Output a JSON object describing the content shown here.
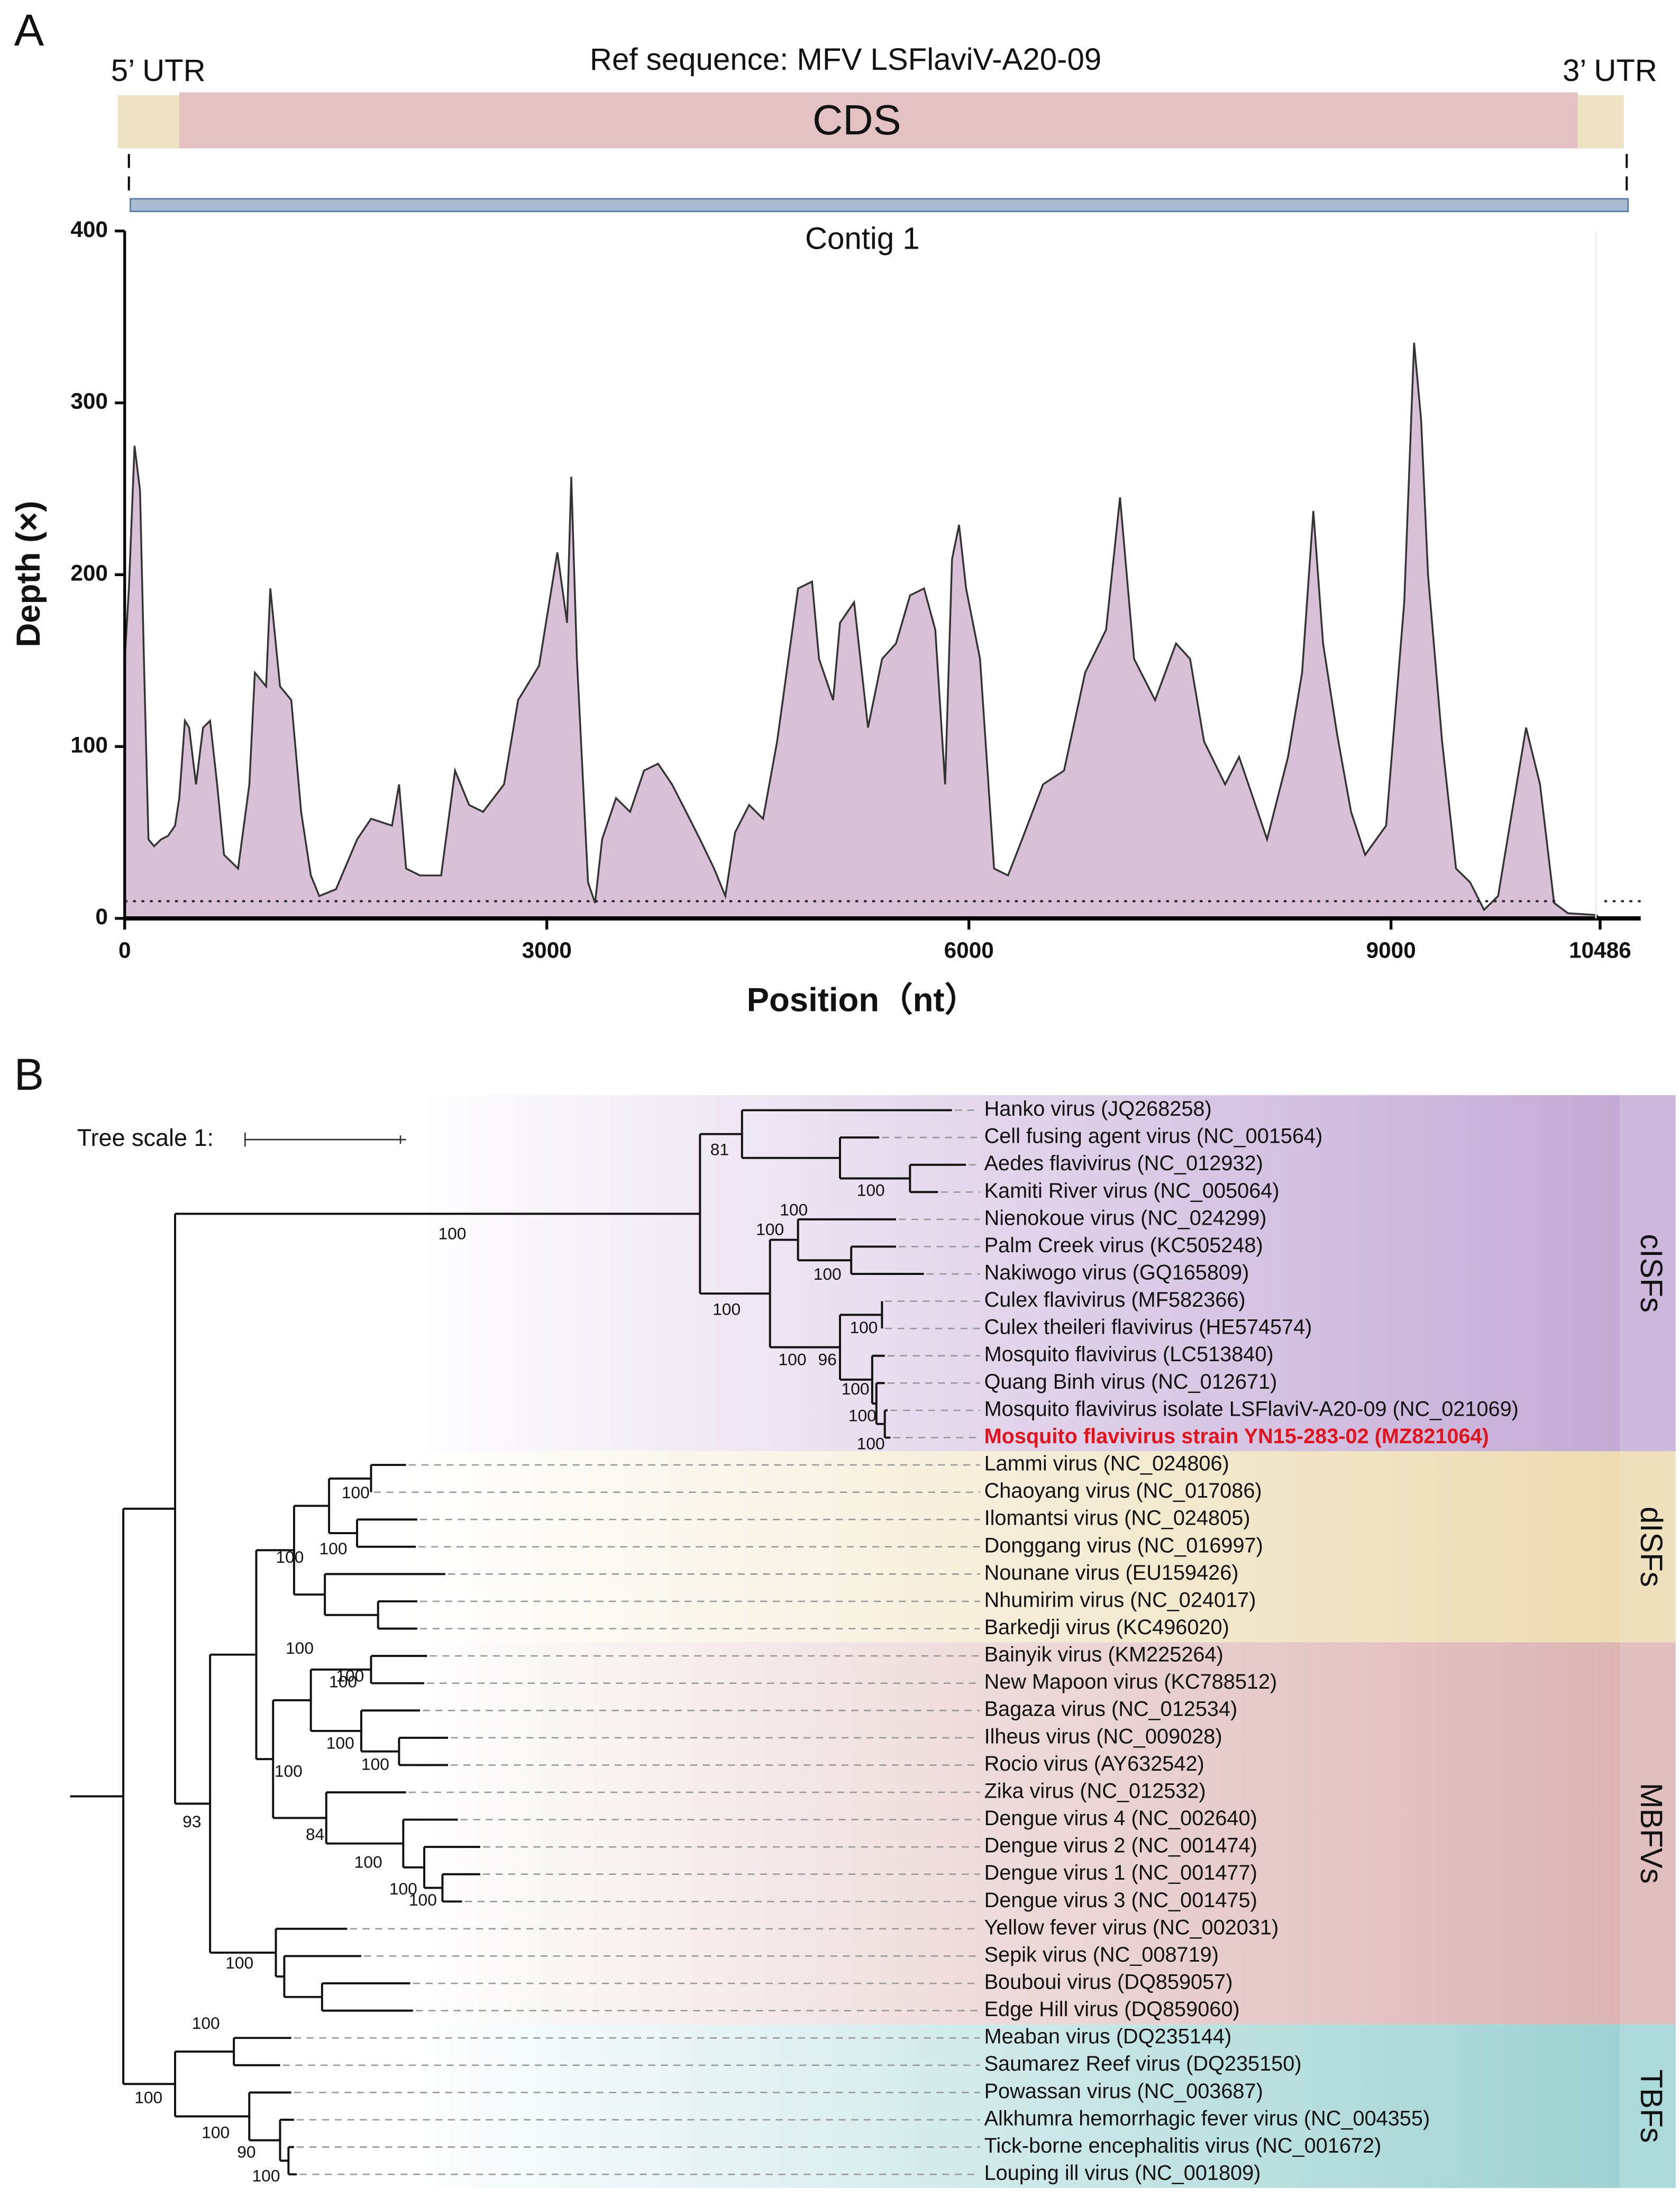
{
  "panel_a": {
    "label": "A",
    "genome_map": {
      "title": "Ref sequence: MFV LSFlaviV-A20-09",
      "left_label": "5’ UTR",
      "right_label": "3’ UTR",
      "cds_label": "CDS"
    }
  },
  "chart_data": {
    "type": "area",
    "title": "Contig 1",
    "x_label": "Position（nt）",
    "y_label": "Depth (×)",
    "x": [
      0,
      30,
      70,
      109,
      139,
      169,
      209,
      259,
      308,
      358,
      388,
      428,
      458,
      507,
      557,
      607,
      657,
      706,
      806,
      886,
      925,
      1005,
      1035,
      1104,
      1184,
      1254,
      1323,
      1383,
      1502,
      1652,
      1751,
      1900,
      1950,
      2000,
      2099,
      2249,
      2348,
      2448,
      2547,
      2696,
      2796,
      2945,
      3075,
      3144,
      3174,
      3214,
      3293,
      3343,
      3393,
      3492,
      3592,
      3691,
      3791,
      3890,
      3990,
      4089,
      4189,
      4269,
      4338,
      4438,
      4537,
      4637,
      4786,
      4885,
      4935,
      5035,
      5084,
      5184,
      5283,
      5383,
      5482,
      5582,
      5681,
      5761,
      5831,
      5880,
      5930,
      5980,
      6079,
      6179,
      6278,
      6378,
      6527,
      6676,
      6826,
      6975,
      7074,
      7174,
      7323,
      7472,
      7572,
      7671,
      7821,
      7920,
      8020,
      8119,
      8268,
      8368,
      8448,
      8517,
      8617,
      8716,
      8816,
      8965,
      9094,
      9164,
      9214,
      9263,
      9363,
      9462,
      9562,
      9661,
      9761,
      9860,
      9960,
      10059,
      10159,
      10258,
      10457,
      10486
    ],
    "values": [
      150,
      192,
      275,
      249,
      143,
      46,
      42,
      46,
      48,
      54,
      70,
      115,
      111,
      78,
      111,
      115,
      78,
      37,
      29,
      78,
      143,
      135,
      192,
      135,
      127,
      62,
      25,
      13,
      17,
      46,
      58,
      54,
      78,
      29,
      25,
      25,
      86,
      66,
      62,
      78,
      127,
      147,
      213,
      172,
      257,
      151,
      21,
      9,
      46,
      70,
      62,
      86,
      90,
      78,
      62,
      46,
      29,
      13,
      50,
      66,
      58,
      103,
      192,
      196,
      151,
      127,
      172,
      184,
      111,
      151,
      160,
      188,
      192,
      168,
      78,
      209,
      229,
      192,
      151,
      29,
      25,
      46,
      78,
      86,
      143,
      168,
      245,
      151,
      127,
      160,
      151,
      103,
      78,
      94,
      70,
      46,
      94,
      143,
      237,
      160,
      107,
      62,
      37,
      54,
      184,
      335,
      290,
      200,
      103,
      29,
      21,
      5,
      13,
      62,
      111,
      78,
      9,
      3,
      2,
      0
    ],
    "color": "#d8c0d6",
    "line_color": "#333333",
    "reference_line": 10,
    "xlim": [
      0,
      10486
    ],
    "ylim": [
      0,
      400
    ],
    "xticks": [
      0,
      3000,
      6000,
      9000,
      10486
    ],
    "yticks": [
      0,
      100,
      200,
      300,
      400
    ]
  },
  "panel_b": {
    "label": "B",
    "scale_label": "Tree scale 1:",
    "groups": [
      {
        "name": "cISFs",
        "color": "#c4aad6",
        "leaves": [
          {
            "name": "Hanko virus (JQ268258)"
          },
          {
            "name": "Cell fusing agent virus (NC_001564)"
          },
          {
            "name": "Aedes flavivirus (NC_012932)"
          },
          {
            "name": "Kamiti River virus (NC_005064)"
          },
          {
            "name": "Nienokoue virus (NC_024299)"
          },
          {
            "name": "Palm Creek virus (KC505248)"
          },
          {
            "name": "Nakiwogo virus (GQ165809)"
          },
          {
            "name": "Culex flavivirus (MF582366)"
          },
          {
            "name": "Culex theileri flavivirus (HE574574)"
          },
          {
            "name": "Mosquito flavivirus (LC513840)"
          },
          {
            "name": "Quang Binh virus (NC_012671)"
          },
          {
            "name": "Mosquito flavivirus isolate LSFlaviV-A20-09 (NC_021069)"
          },
          {
            "name": "Mosquito flavivirus strain YN15-283-02 (MZ821064)",
            "color": "#e0141e"
          }
        ]
      },
      {
        "name": "dISFs",
        "color": "#ecdcb2",
        "leaves": [
          {
            "name": "Lammi virus (NC_024806)"
          },
          {
            "name": "Chaoyang virus (NC_017086)"
          },
          {
            "name": "Ilomantsi virus (NC_024805)"
          },
          {
            "name": "Donggang virus (NC_016997)"
          },
          {
            "name": "Nounane virus (EU159426)"
          },
          {
            "name": "Nhumirim virus (NC_024017)"
          },
          {
            "name": "Barkedji virus (KC496020)"
          }
        ]
      },
      {
        "name": "MBFVs",
        "color": "#dcb4b4",
        "leaves": [
          {
            "name": "Bainyik virus (KM225264)"
          },
          {
            "name": "New Mapoon virus (KC788512)"
          },
          {
            "name": "Bagaza virus (NC_012534)"
          },
          {
            "name": "Ilheus virus (NC_009028)"
          },
          {
            "name": "Rocio virus (AY632542)"
          },
          {
            "name": "Zika virus (NC_012532)"
          },
          {
            "name": "Dengue virus 4 (NC_002640)"
          },
          {
            "name": "Dengue virus 2 (NC_001474)"
          },
          {
            "name": "Dengue virus 1 (NC_001477)"
          },
          {
            "name": "Dengue virus 3 (NC_001475)"
          },
          {
            "name": "Yellow fever virus (NC_002031)"
          },
          {
            "name": "Sepik virus (NC_008719)"
          },
          {
            "name": "Bouboui virus (DQ859057)"
          },
          {
            "name": "Edge Hill virus (DQ859060)"
          }
        ]
      },
      {
        "name": "TBFs",
        "color": "#9ed2d2",
        "leaves": [
          {
            "name": "Meaban virus (DQ235144)"
          },
          {
            "name": "Saumarez Reef virus (DQ235150)"
          },
          {
            "name": "Powassan virus (NC_003687)"
          },
          {
            "name": "Alkhumra hemorrhagic fever virus (NC_004355)"
          },
          {
            "name": "Tick-borne encephalitis virus (NC_001672)"
          },
          {
            "name": "Louping ill virus (NC_001809)"
          }
        ]
      }
    ],
    "bootstraps": [
      81,
      100,
      100,
      100,
      100,
      100,
      100,
      100,
      100,
      96,
      100,
      100,
      100,
      100,
      100,
      100,
      100,
      100,
      100,
      100,
      100,
      100,
      93,
      84,
      100,
      100,
      100,
      100,
      100,
      100,
      100,
      90,
      100
    ]
  }
}
